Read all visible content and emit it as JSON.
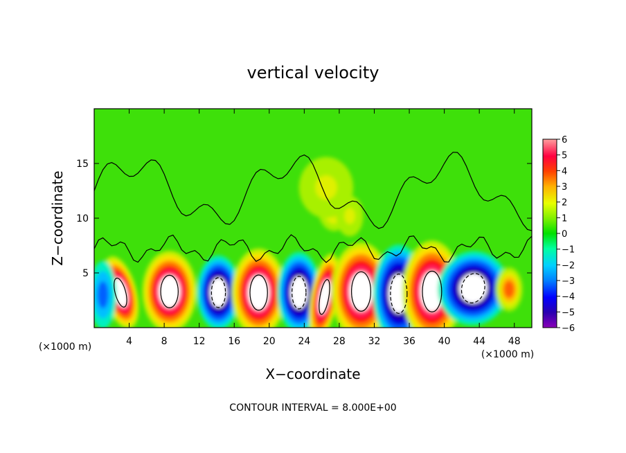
{
  "chart_data": {
    "type": "heatmap",
    "title": "vertical velocity",
    "xlabel": "X−coordinate",
    "ylabel": "Z−coordinate",
    "x_unit_label": "(×1000 m)",
    "y_unit_label": "(×1000 m)",
    "xlim": [
      0,
      50
    ],
    "ylim": [
      0,
      20
    ],
    "xticks": [
      4,
      8,
      12,
      16,
      20,
      24,
      28,
      32,
      36,
      40,
      44,
      48
    ],
    "yticks": [
      5,
      10,
      15
    ],
    "colorbar": {
      "ticks": [
        "6",
        "5",
        "4",
        "3",
        "2",
        "1",
        "0",
        "−1",
        "−2",
        "−3",
        "−4",
        "−5",
        "−6"
      ],
      "range": [
        -6,
        6
      ]
    },
    "annotation": "CONTOUR INTERVAL = 8.000E+00",
    "cells": [
      {
        "x": 3,
        "z": 3.2,
        "w": 1.2,
        "h": 2.2,
        "v": 8,
        "rotate": -15
      },
      {
        "x": 8.6,
        "z": 3.3,
        "w": 2.0,
        "h": 2.4,
        "v": 10
      },
      {
        "x": 14.2,
        "z": 3.2,
        "w": 1.6,
        "h": 2.2,
        "v": -10
      },
      {
        "x": 18.8,
        "z": 3.2,
        "w": 2.0,
        "h": 2.6,
        "v": 10
      },
      {
        "x": 23.4,
        "z": 3.2,
        "w": 1.6,
        "h": 2.4,
        "v": -9
      },
      {
        "x": 26.3,
        "z": 2.8,
        "w": 1.0,
        "h": 2.6,
        "v": 9,
        "rotate": 10
      },
      {
        "x": 30.5,
        "z": 3.3,
        "w": 2.2,
        "h": 2.9,
        "v": 11
      },
      {
        "x": 34.8,
        "z": 3.1,
        "w": 1.9,
        "h": 2.9,
        "v": -11
      },
      {
        "x": 38.6,
        "z": 3.3,
        "w": 2.2,
        "h": 3.0,
        "v": 11
      },
      {
        "x": 43.3,
        "z": 3.6,
        "w": 2.6,
        "h": 2.2,
        "v": -10,
        "rotate": 15
      },
      {
        "x": 47.4,
        "z": 3.5,
        "w": 1.0,
        "h": 1.3,
        "v": 3.5
      },
      {
        "x": 1.0,
        "z": 3.0,
        "w": 1.0,
        "h": 2.0,
        "v": -4
      },
      {
        "x": 27.4,
        "z": 11.0,
        "w": 1.2,
        "h": 1.4,
        "v": 3.0
      },
      {
        "x": 29.2,
        "z": 10.2,
        "w": 1.0,
        "h": 1.2,
        "v": 2.2
      },
      {
        "x": 26.5,
        "z": 12.8,
        "w": 2.0,
        "h": 1.8,
        "v": 1.6
      }
    ]
  }
}
